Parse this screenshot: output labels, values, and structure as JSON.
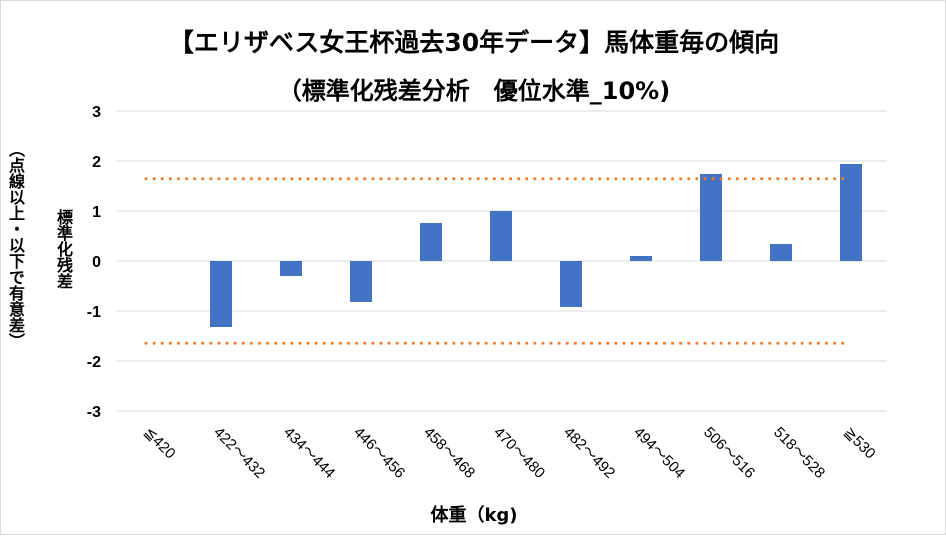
{
  "chart_data": {
    "type": "bar",
    "title": "【エリザベス女王杯過去30年データ】馬体重毎の傾向",
    "subtitle": "（標準化残差分析　優位水準_10%)",
    "xlabel": "体重（kg)",
    "ylabel": "標準化残差",
    "ylabel2": "（点線以上・以下で有意差）",
    "categories": [
      "≦420",
      "422～432",
      "434～444",
      "446～456",
      "458～468",
      "470～480",
      "482～492",
      "494～504",
      "506～516",
      "518～528",
      "≧530"
    ],
    "values": [
      0,
      -1.32,
      -0.3,
      -0.82,
      0.76,
      1.0,
      -0.92,
      0.1,
      1.74,
      0.34,
      1.94
    ],
    "ylim": [
      -3,
      3
    ],
    "yticks": [
      3,
      2,
      1,
      0,
      -1,
      -2,
      -3
    ],
    "thresholds": [
      1.645,
      -1.645
    ],
    "grid": true,
    "colors": {
      "bar": "#4472c4",
      "threshold": "#ed7d31",
      "grid": "#d9d9d9"
    }
  }
}
